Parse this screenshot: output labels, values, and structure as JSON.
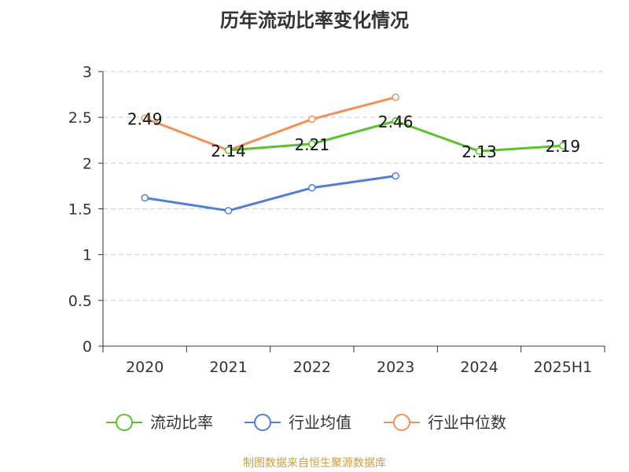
{
  "title": "历年流动比率变化情况",
  "source": "制图数据来自恒生聚源数据库",
  "chart_data": {
    "type": "line",
    "title": "历年流动比率变化情况",
    "categories": [
      "2020",
      "2021",
      "2022",
      "2023",
      "2024",
      "2025H1"
    ],
    "ylim": [
      0,
      3
    ],
    "yticks": [
      "0",
      "0.5",
      "1",
      "1.5",
      "2",
      "2.5",
      "3"
    ],
    "grid": true,
    "legend_position": "bottom",
    "series": [
      {
        "name": "流动比率",
        "color": "#5cc12e",
        "values": [
          null,
          2.14,
          2.21,
          2.46,
          2.13,
          2.19
        ],
        "labels": [
          "",
          "2.14",
          "2.21",
          "2.46",
          "2.13",
          "2.19"
        ]
      },
      {
        "name": "行业均值",
        "color": "#4f7fd8",
        "values": [
          1.62,
          1.48,
          1.73,
          1.86,
          null,
          null
        ],
        "labels": null
      },
      {
        "name": "行业中位数",
        "color": "#f29157",
        "values": [
          2.49,
          2.14,
          2.48,
          2.72,
          null,
          null
        ],
        "labels": [
          "2.49",
          "",
          "",
          "",
          "",
          ""
        ]
      }
    ]
  }
}
